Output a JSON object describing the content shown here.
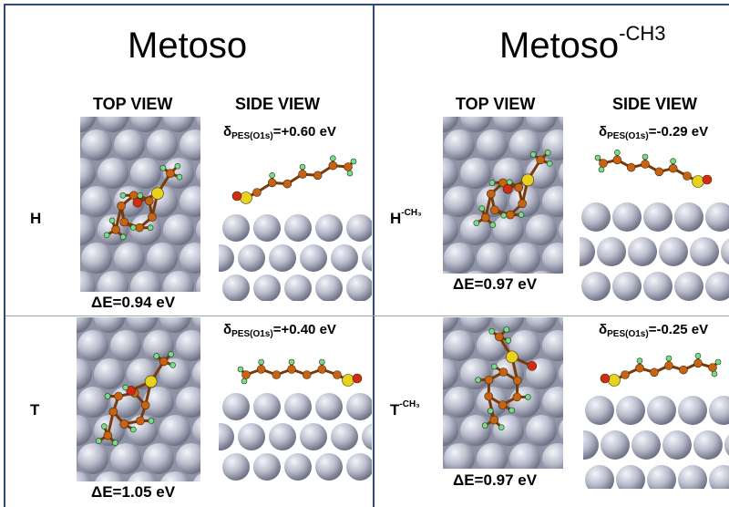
{
  "left": {
    "title": "Metoso",
    "top_view": "TOP VIEW",
    "side_view": "SIDE VIEW",
    "row_H": {
      "label": "H",
      "delta_prefix": "δ",
      "delta_sub": "PES(O1s)",
      "delta_value": "=+0.60 eV",
      "energy": "ΔE=0.94 eV"
    },
    "row_T": {
      "label": "T",
      "delta_prefix": "δ",
      "delta_sub": "PES(O1s)",
      "delta_value": "=+0.40 eV",
      "energy": "ΔE=1.05 eV"
    }
  },
  "right": {
    "title": "Metoso",
    "title_sup": "-CH3",
    "top_view": "TOP VIEW",
    "side_view": "SIDE VIEW",
    "row_H": {
      "label": "H",
      "label_sup": "-CH₃",
      "delta_prefix": "δ",
      "delta_sub": "PES(O1s)",
      "delta_value": "=-0.29 eV",
      "energy": "ΔE=0.97 eV"
    },
    "row_T": {
      "label": "T",
      "label_sup": "-CH₃",
      "delta_prefix": "δ",
      "delta_sub": "PES(O1s)",
      "delta_value": "=-0.25 eV",
      "energy": "ΔE=0.97 eV"
    }
  },
  "colors": {
    "divider": "#2f4a7a",
    "surface_atom": "#b9bccb",
    "carbon": "#c8640f",
    "sulfur": "#e8d21a",
    "oxygen": "#d42a12",
    "hydrogen": "#6fe08a"
  }
}
